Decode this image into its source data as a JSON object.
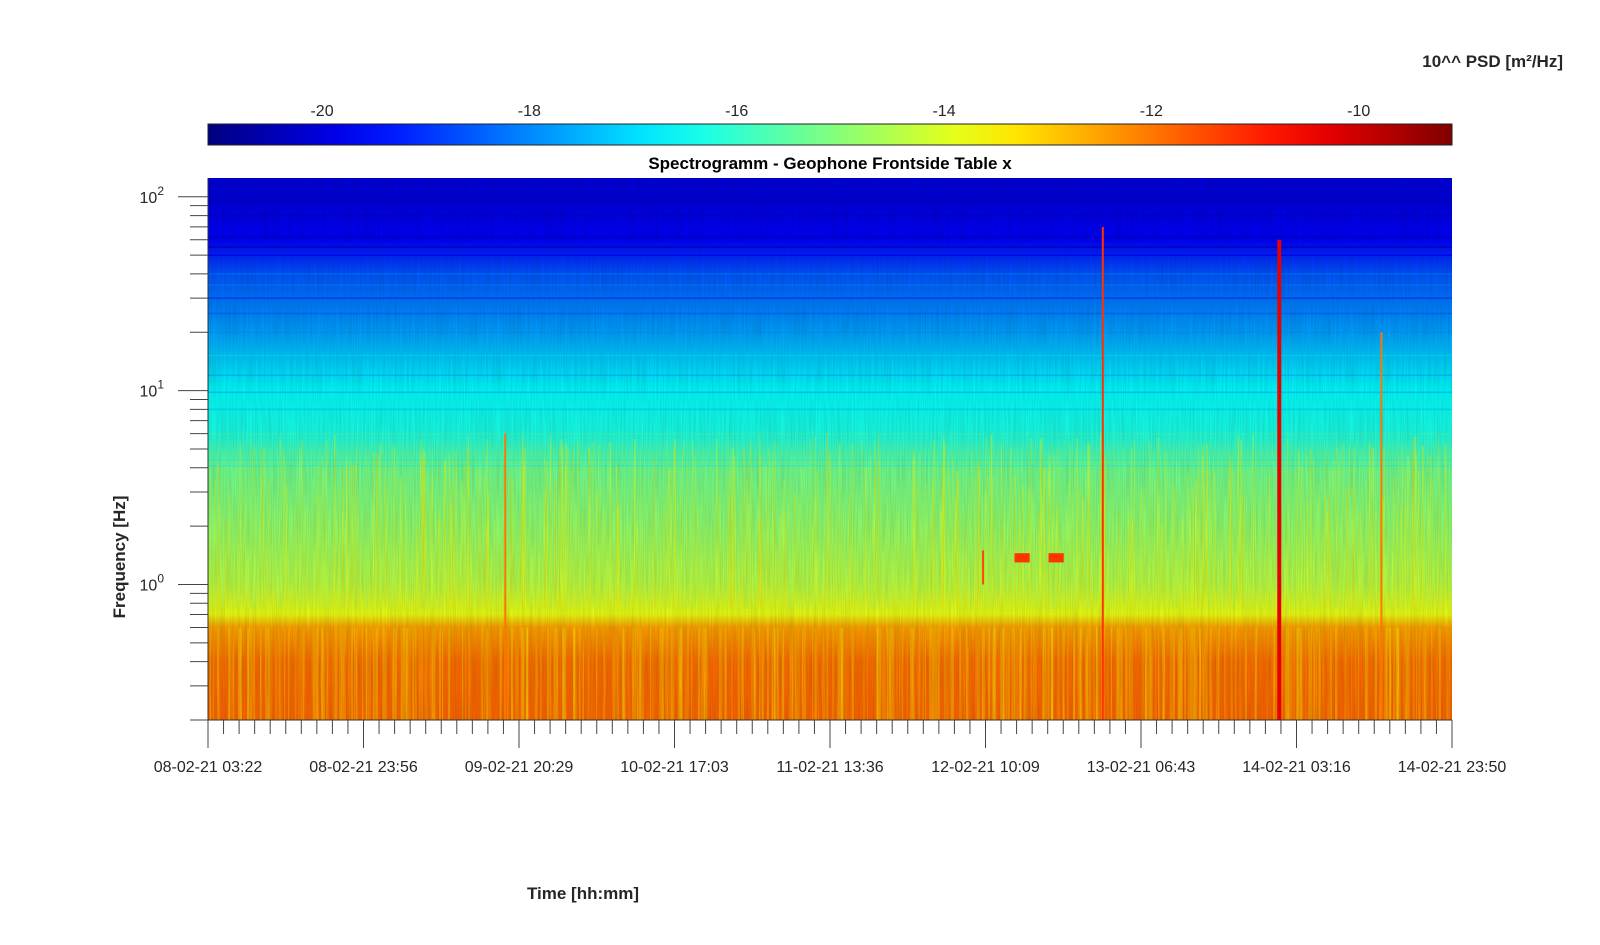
{
  "chart_data": {
    "type": "heatmap",
    "title": "Spectrogramm - Geophone Frontside Table x",
    "xlabel": "Time [hh:mm]",
    "ylabel": "Frequency [Hz]",
    "y_scale": "log",
    "ylim": [
      0.2,
      125
    ],
    "y_ticks": [
      {
        "value": 1,
        "base": "10",
        "exp": "0"
      },
      {
        "value": 10,
        "base": "10",
        "exp": "1"
      },
      {
        "value": 100,
        "base": "10",
        "exp": "2"
      }
    ],
    "x_tick_labels": [
      "08-02-21 03:22",
      "08-02-21 23:56",
      "09-02-21 20:29",
      "10-02-21 17:03",
      "11-02-21 13:36",
      "12-02-21 10:09",
      "13-02-21 06:43",
      "14-02-21 03:16",
      "14-02-21 23:50"
    ],
    "colorbar": {
      "label": "10^^ PSD [m²/Hz]",
      "colormap": "jet",
      "range": [
        -21.1,
        -9.1
      ],
      "ticks": [
        "-20",
        "-18",
        "-16",
        "-14",
        "-12",
        "-10"
      ]
    },
    "profile": [
      {
        "freq": 0.2,
        "log_psd": -11.8
      },
      {
        "freq": 0.4,
        "log_psd": -11.9
      },
      {
        "freq": 0.6,
        "log_psd": -12.5
      },
      {
        "freq": 0.7,
        "log_psd": -13.8
      },
      {
        "freq": 1.0,
        "log_psd": -14.4
      },
      {
        "freq": 2.0,
        "log_psd": -14.9
      },
      {
        "freq": 4.0,
        "log_psd": -15.3
      },
      {
        "freq": 6.0,
        "log_psd": -16.3
      },
      {
        "freq": 10,
        "log_psd": -16.6
      },
      {
        "freq": 20,
        "log_psd": -17.7
      },
      {
        "freq": 40,
        "log_psd": -18.6
      },
      {
        "freq": 60,
        "log_psd": -19.6
      },
      {
        "freq": 100,
        "log_psd": -20.0
      }
    ],
    "events": [
      {
        "time": "09-02-21 18:40",
        "f_low": 0.2,
        "f_high": 6,
        "log_psd": -12.0
      },
      {
        "time": "12-02-21 09:50",
        "f_low": 1.0,
        "f_high": 1.5,
        "log_psd": -11.5
      },
      {
        "time": "12-02-21 14:00",
        "f_low": 1.3,
        "f_high": 1.45,
        "log_psd": -11.2,
        "duration_h": 2
      },
      {
        "time": "12-02-21 18:30",
        "f_low": 1.3,
        "f_high": 1.45,
        "log_psd": -11.2,
        "duration_h": 2
      },
      {
        "time": "13-02-21 01:40",
        "f_low": 0.2,
        "f_high": 70,
        "log_psd": -11.2
      },
      {
        "time": "14-02-21 01:00",
        "f_low": 0.2,
        "f_high": 60,
        "log_psd": -10.3
      },
      {
        "time": "14-02-21 14:30",
        "f_low": 0.2,
        "f_high": 20,
        "log_psd": -12.0
      }
    ]
  }
}
